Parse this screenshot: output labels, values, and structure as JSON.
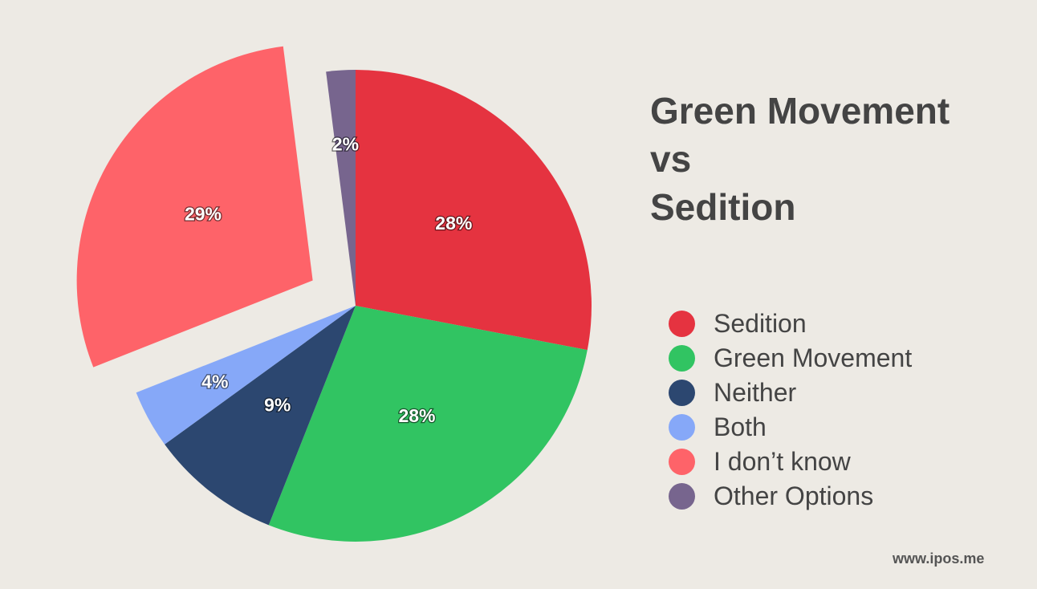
{
  "chart_data": {
    "type": "pie",
    "title_lines": [
      "Green Movement",
      "vs",
      "Sedition"
    ],
    "slices": [
      {
        "name": "Sedition",
        "value": 28,
        "label": "28%",
        "color": "#e53340",
        "exploded": false
      },
      {
        "name": "Green Movement",
        "value": 28,
        "label": "28%",
        "color": "#31c462",
        "exploded": false
      },
      {
        "name": "Neither",
        "value": 9,
        "label": "9%",
        "color": "#2c4770",
        "exploded": false
      },
      {
        "name": "Both",
        "value": 4,
        "label": "4%",
        "color": "#86a8f8",
        "exploded": false
      },
      {
        "name": "I don’t know",
        "value": 29,
        "label": "29%",
        "color": "#fe6369",
        "exploded": true
      },
      {
        "name": "Other Options",
        "value": 2,
        "label": "2%",
        "color": "#77658e",
        "exploded": false
      }
    ],
    "legend_position": "right"
  },
  "footer": "www.ipos.me"
}
